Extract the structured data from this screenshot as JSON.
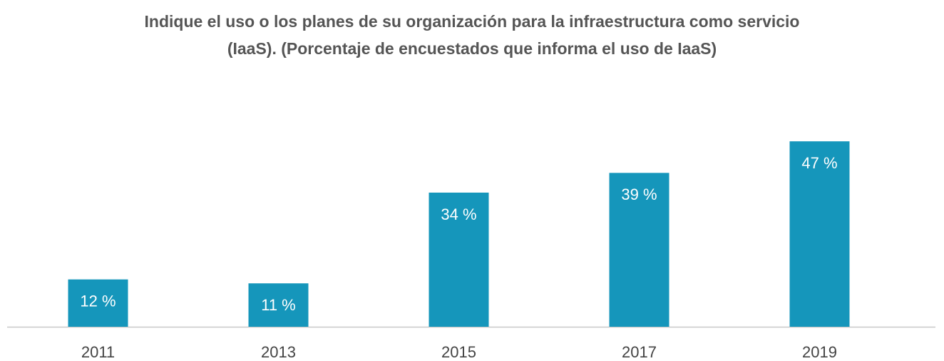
{
  "chart_data": {
    "type": "bar",
    "title": [
      "Indique el uso o los planes de su organización para la infraestructura como servicio",
      "(IaaS). (Porcentaje de encuestados que informa el uso de IaaS)"
    ],
    "categories": [
      "2011",
      "2013",
      "2015",
      "2017",
      "2019"
    ],
    "values": [
      12,
      11,
      34,
      39,
      47
    ],
    "value_labels": [
      "12 %",
      "11 %",
      "34 %",
      "39 %",
      "47 %"
    ],
    "color": "#1596bb"
  }
}
